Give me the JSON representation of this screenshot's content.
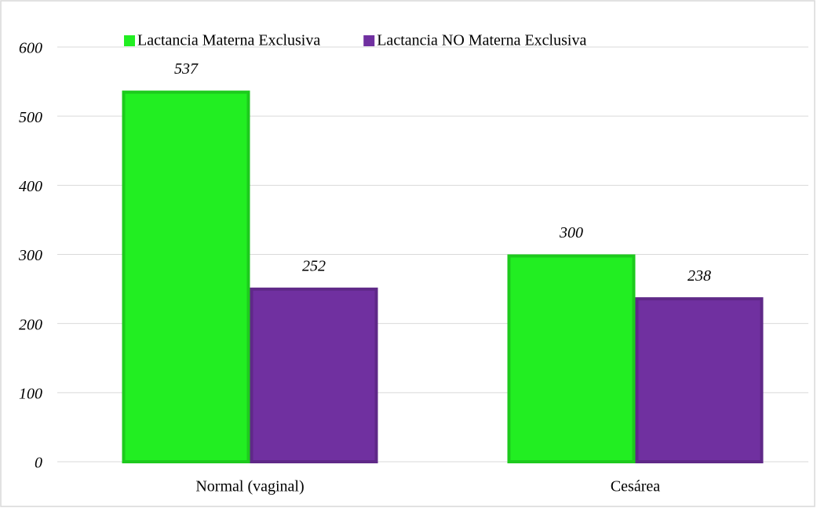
{
  "chart_data": {
    "type": "bar",
    "categories": [
      "Normal (vaginal)",
      "Cesárea"
    ],
    "series": [
      {
        "name": "Lactancia Materna Exclusiva",
        "color": "#22ee22",
        "values": [
          537,
          300
        ]
      },
      {
        "name": "Lactancia NO Materna Exclusiva",
        "color": "#7030a0",
        "values": [
          252,
          238
        ]
      }
    ],
    "ylim": [
      0,
      600
    ],
    "yticks": [
      0,
      100,
      200,
      300,
      400,
      500,
      600
    ],
    "grid": true,
    "legend": "top"
  }
}
